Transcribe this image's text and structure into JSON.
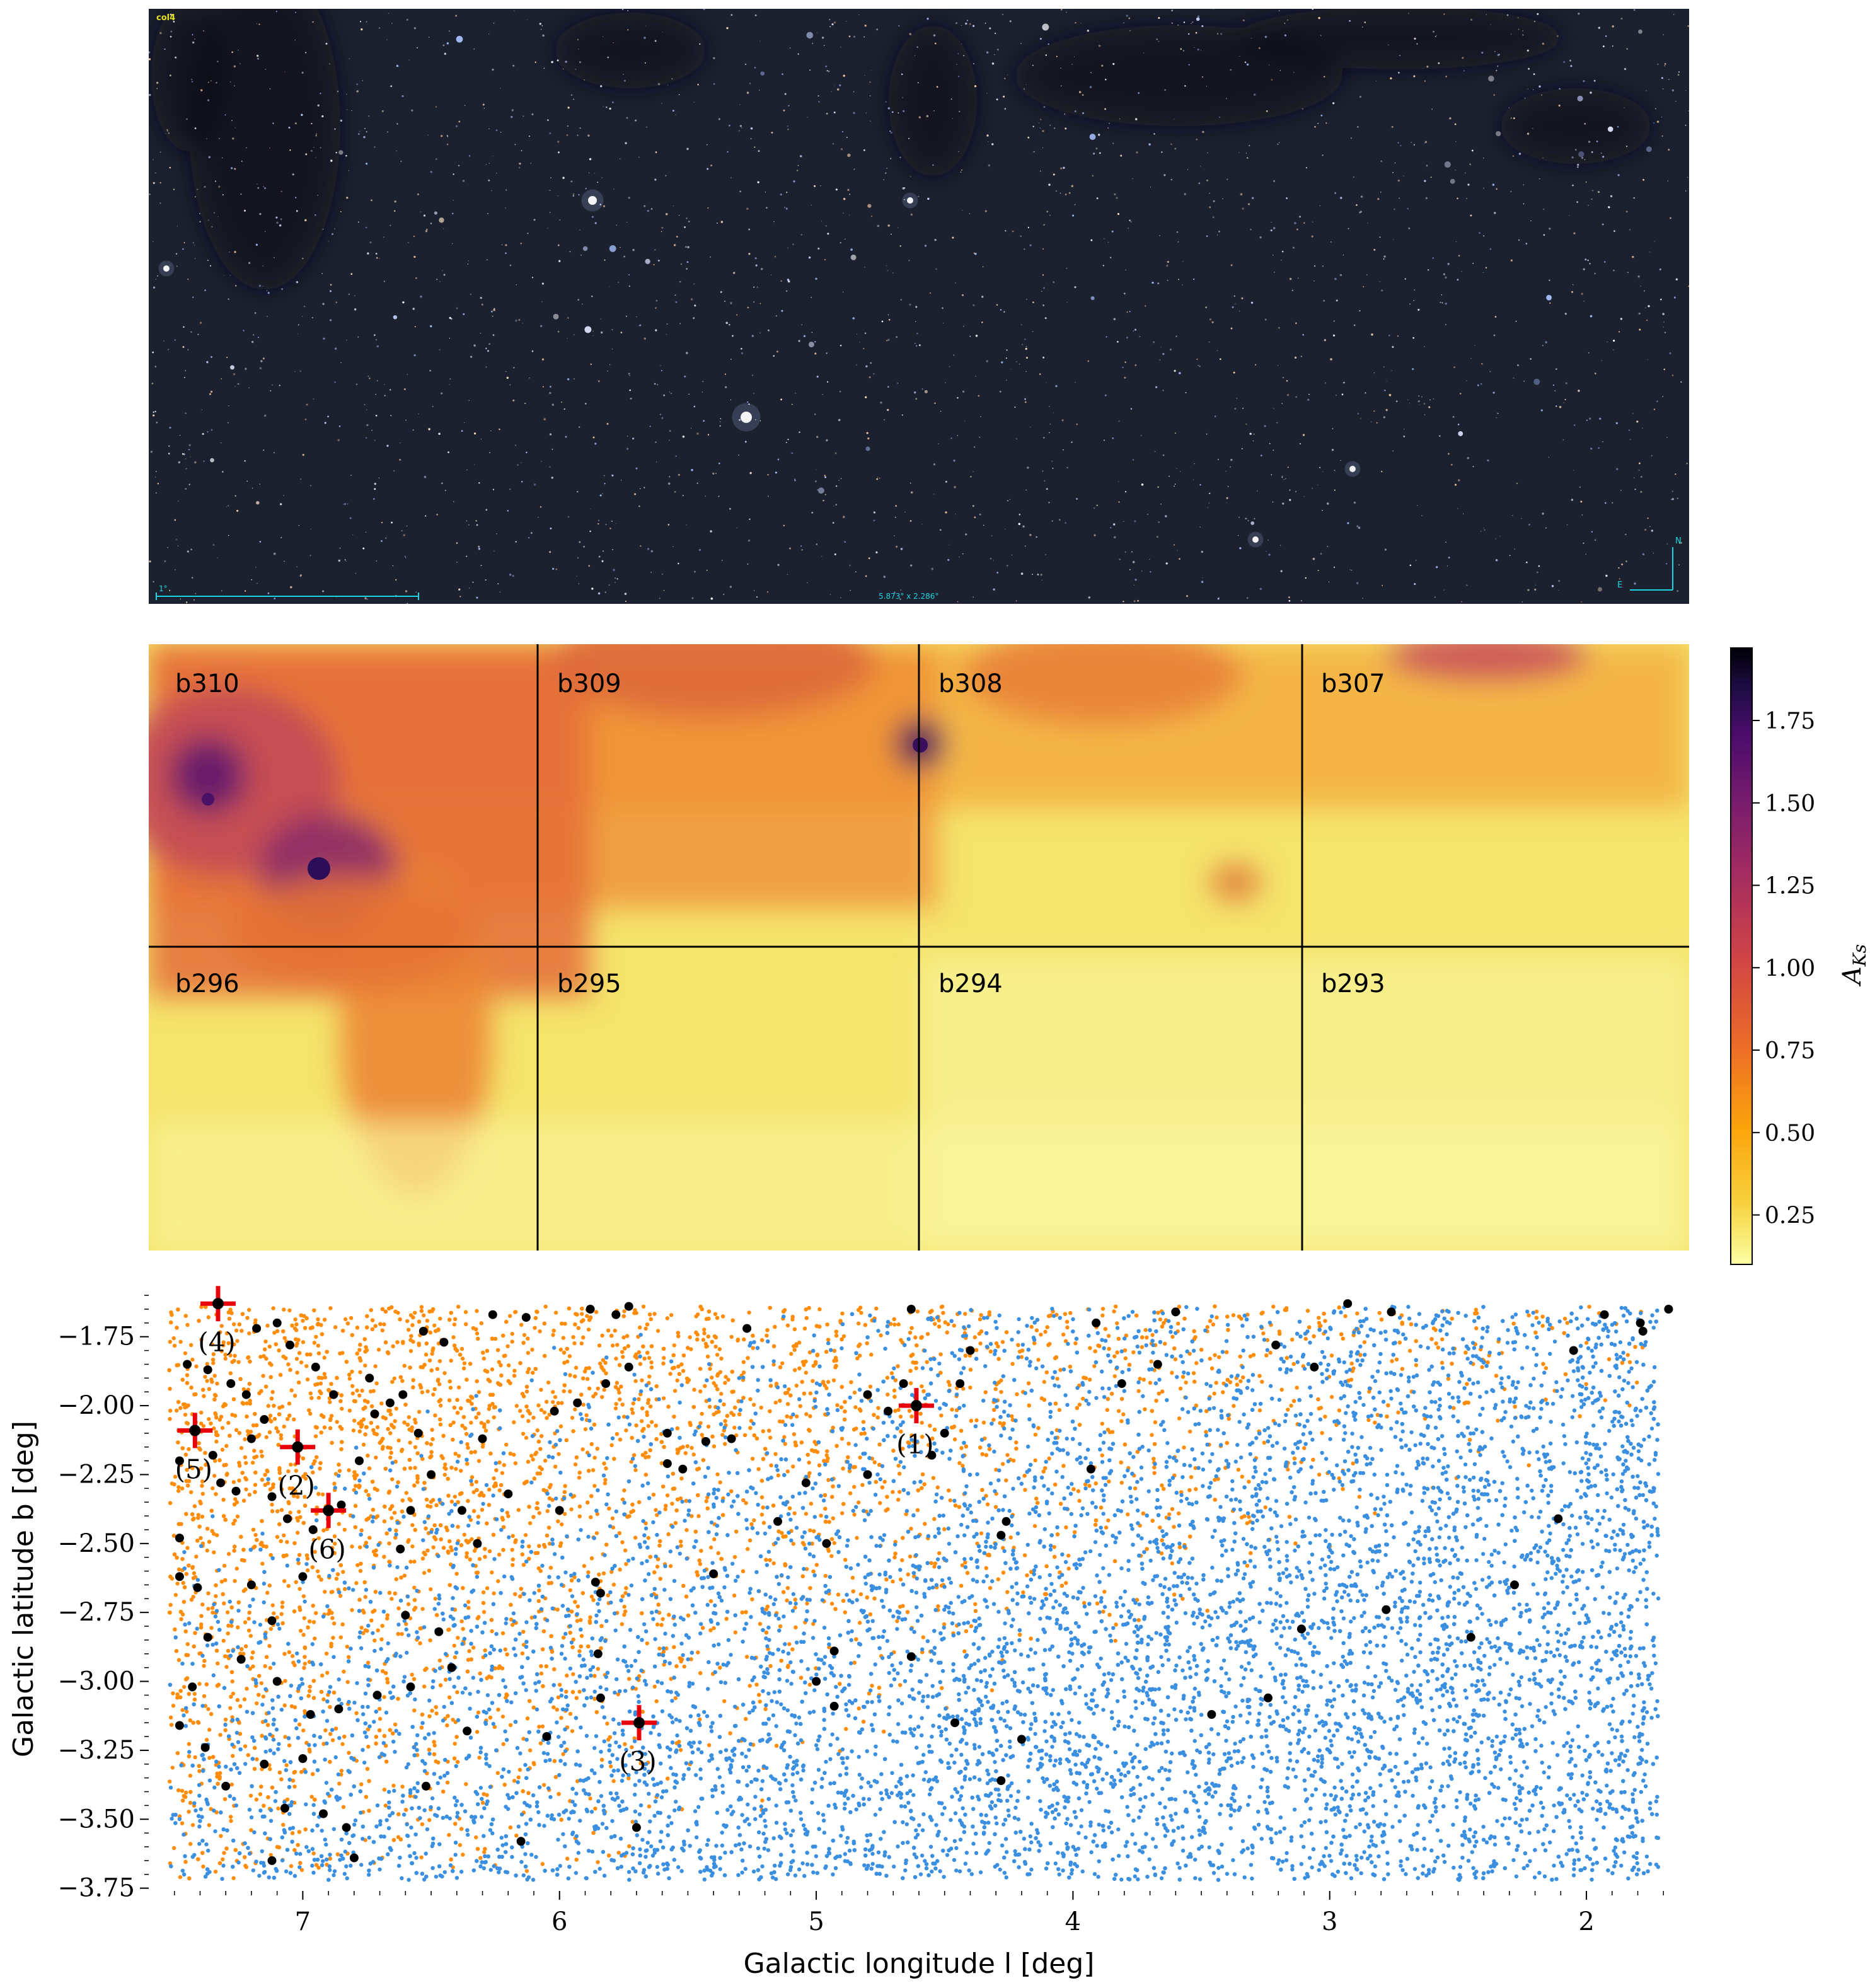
{
  "image_panel": {
    "label": "col4",
    "scale_text": "1°",
    "size_text": "5.873° x 2.286°",
    "compass_n": "N",
    "compass_e": "E",
    "colors": {
      "background": "#1c2130",
      "overlay_text": "#19d6de",
      "label_text": "#e3e11d"
    }
  },
  "chart_data": [
    {
      "type": "heatmap",
      "title": "",
      "tiles_row1": [
        "b310",
        "b309",
        "b308",
        "b307"
      ],
      "tiles_row2": [
        "b296",
        "b295",
        "b294",
        "b293"
      ],
      "colorbar": {
        "label": "A_{Ks}",
        "label_main": "A",
        "label_sub": "Ks",
        "range": [
          0.1,
          1.97
        ],
        "ticks": [
          0.25,
          0.5,
          0.75,
          1.0,
          1.25,
          1.5,
          1.75
        ],
        "tick_labels": [
          "0.25",
          "0.50",
          "0.75",
          "1.00",
          "1.25",
          "1.50",
          "1.75"
        ],
        "colormap": [
          "#fcffa4",
          "#fac228",
          "#f57d15",
          "#d44842",
          "#9f2a63",
          "#65156e",
          "#280b53",
          "#000004"
        ]
      }
    },
    {
      "type": "scatter",
      "xlabel": "Galactic longitude l [deg]",
      "ylabel": "Galactic latitude b [deg]",
      "xlim": [
        7.6,
        1.6
      ],
      "ylim": [
        -3.76,
        -1.57
      ],
      "xticks": [
        7,
        6,
        5,
        4,
        3,
        2
      ],
      "xtick_labels": [
        "7",
        "6",
        "5",
        "4",
        "3",
        "2"
      ],
      "yticks": [
        -1.75,
        -2.0,
        -2.25,
        -2.5,
        -2.75,
        -3.0,
        -3.25,
        -3.5,
        -3.75
      ],
      "ytick_labels": [
        "−1.75",
        "−2.00",
        "−2.25",
        "−2.50",
        "−2.75",
        "−3.00",
        "−3.25",
        "−3.50",
        "−3.75"
      ],
      "series_colors": {
        "orange": "#ff8c0a",
        "blue": "#3b8fe0",
        "black": "#000000",
        "marked": "#e8000b"
      },
      "marked_objects": [
        {
          "label": "(1)",
          "l": 4.61,
          "b": -2.0
        },
        {
          "label": "(2)",
          "l": 7.02,
          "b": -2.15
        },
        {
          "label": "(3)",
          "l": 5.69,
          "b": -3.15
        },
        {
          "label": "(4)",
          "l": 7.33,
          "b": -1.63
        },
        {
          "label": "(5)",
          "l": 7.42,
          "b": -2.09
        },
        {
          "label": "(6)",
          "l": 6.9,
          "b": -2.38
        }
      ],
      "black_points": [
        [
          7.33,
          -1.63
        ],
        [
          7.18,
          -1.72
        ],
        [
          7.1,
          -1.7
        ],
        [
          7.45,
          -1.85
        ],
        [
          7.37,
          -1.87
        ],
        [
          7.28,
          -1.92
        ],
        [
          7.22,
          -1.96
        ],
        [
          7.15,
          -2.05
        ],
        [
          7.2,
          -2.12
        ],
        [
          7.35,
          -2.18
        ],
        [
          7.48,
          -2.2
        ],
        [
          7.32,
          -2.28
        ],
        [
          7.26,
          -2.31
        ],
        [
          7.12,
          -2.33
        ],
        [
          7.06,
          -2.41
        ],
        [
          6.96,
          -2.45
        ],
        [
          6.85,
          -2.36
        ],
        [
          6.78,
          -2.2
        ],
        [
          6.72,
          -2.03
        ],
        [
          6.66,
          -1.99
        ],
        [
          6.61,
          -1.96
        ],
        [
          6.55,
          -2.1
        ],
        [
          6.5,
          -2.25
        ],
        [
          6.38,
          -2.38
        ],
        [
          6.32,
          -2.5
        ],
        [
          6.58,
          -2.38
        ],
        [
          6.62,
          -2.52
        ],
        [
          6.6,
          -2.76
        ],
        [
          6.47,
          -2.82
        ],
        [
          6.42,
          -2.95
        ],
        [
          6.58,
          -3.02
        ],
        [
          6.71,
          -3.05
        ],
        [
          6.86,
          -3.1
        ],
        [
          6.97,
          -3.12
        ],
        [
          7.1,
          -3.0
        ],
        [
          7.24,
          -2.92
        ],
        [
          7.37,
          -2.84
        ],
        [
          7.41,
          -2.66
        ],
        [
          7.48,
          -2.48
        ],
        [
          7.2,
          -2.65
        ],
        [
          7.0,
          -2.62
        ],
        [
          7.12,
          -2.78
        ],
        [
          7.43,
          -3.02
        ],
        [
          7.48,
          -3.16
        ],
        [
          7.38,
          -3.24
        ],
        [
          7.3,
          -3.38
        ],
        [
          7.15,
          -3.3
        ],
        [
          7.0,
          -3.28
        ],
        [
          6.83,
          -3.53
        ],
        [
          6.8,
          -3.64
        ],
        [
          7.07,
          -3.46
        ],
        [
          7.12,
          -3.65
        ],
        [
          6.92,
          -3.48
        ],
        [
          6.52,
          -3.38
        ],
        [
          6.15,
          -3.58
        ],
        [
          6.05,
          -3.2
        ],
        [
          5.84,
          -3.06
        ],
        [
          5.85,
          -2.9
        ],
        [
          5.84,
          -2.68
        ],
        [
          5.86,
          -2.64
        ],
        [
          6.0,
          -2.38
        ],
        [
          6.2,
          -2.32
        ],
        [
          6.3,
          -2.12
        ],
        [
          6.02,
          -2.02
        ],
        [
          5.93,
          -1.99
        ],
        [
          5.82,
          -1.92
        ],
        [
          5.73,
          -1.86
        ],
        [
          5.58,
          -2.1
        ],
        [
          5.43,
          -2.13
        ],
        [
          5.33,
          -2.12
        ],
        [
          5.58,
          -2.21
        ],
        [
          5.52,
          -2.23
        ],
        [
          5.4,
          -2.61
        ],
        [
          5.04,
          -2.28
        ],
        [
          4.96,
          -2.5
        ],
        [
          5.0,
          -3.0
        ],
        [
          4.93,
          -3.09
        ],
        [
          4.93,
          -2.89
        ],
        [
          4.63,
          -2.91
        ],
        [
          4.72,
          -2.02
        ],
        [
          4.8,
          -1.96
        ],
        [
          4.66,
          -1.92
        ],
        [
          4.63,
          -1.65
        ],
        [
          4.5,
          -2.1
        ],
        [
          4.44,
          -1.92
        ],
        [
          4.46,
          -3.15
        ],
        [
          4.28,
          -2.47
        ],
        [
          4.26,
          -2.42
        ],
        [
          4.2,
          -3.21
        ],
        [
          4.28,
          -3.36
        ],
        [
          3.93,
          -2.23
        ],
        [
          3.91,
          -1.7
        ],
        [
          3.81,
          -1.92
        ],
        [
          3.67,
          -1.85
        ],
        [
          3.46,
          -3.12
        ],
        [
          3.24,
          -3.06
        ],
        [
          3.21,
          -1.78
        ],
        [
          3.11,
          -2.81
        ],
        [
          3.06,
          -1.86
        ],
        [
          2.78,
          -2.74
        ],
        [
          2.93,
          -1.63
        ],
        [
          2.76,
          -1.66
        ],
        [
          2.45,
          -2.84
        ],
        [
          2.28,
          -2.65
        ],
        [
          2.11,
          -2.41
        ],
        [
          2.05,
          -1.8
        ],
        [
          1.93,
          -1.67
        ],
        [
          1.79,
          -1.7
        ],
        [
          1.78,
          -1.73
        ],
        [
          1.68,
          -1.65
        ],
        [
          5.7,
          -3.53
        ],
        [
          5.78,
          -1.67
        ],
        [
          5.88,
          -1.65
        ],
        [
          6.13,
          -1.68
        ],
        [
          6.53,
          -1.73
        ],
        [
          6.74,
          -1.9
        ],
        [
          5.27,
          -1.72
        ],
        [
          5.73,
          -1.64
        ],
        [
          4.4,
          -1.8
        ],
        [
          3.6,
          -1.66
        ],
        [
          6.88,
          -1.96
        ],
        [
          6.95,
          -1.86
        ],
        [
          7.48,
          -2.62
        ],
        [
          7.05,
          -1.78
        ],
        [
          6.45,
          -1.77
        ],
        [
          6.26,
          -1.67
        ],
        [
          4.55,
          -2.18
        ],
        [
          4.8,
          -2.25
        ],
        [
          5.15,
          -2.42
        ],
        [
          6.36,
          -3.18
        ]
      ],
      "random_seed": 42
    }
  ]
}
